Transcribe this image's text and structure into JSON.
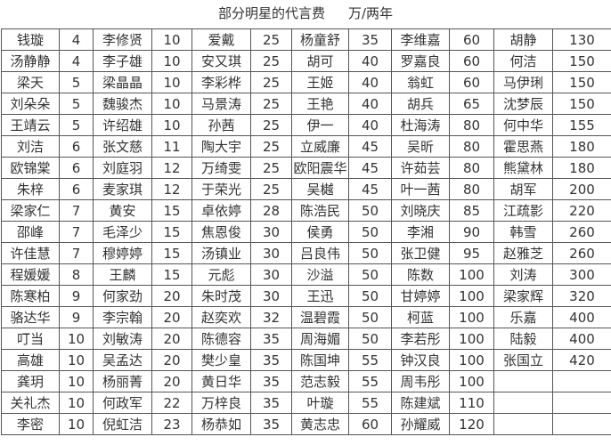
{
  "title": "部分明星的代言费",
  "unit": "万/两年",
  "columns": [
    [
      [
        "钱璇",
        "4"
      ],
      [
        "汤静静",
        "4"
      ],
      [
        "梁天",
        "5"
      ],
      [
        "刘朵朵",
        "5"
      ],
      [
        "王靖云",
        "5"
      ],
      [
        "刘洁",
        "6"
      ],
      [
        "欧锦棠",
        "6"
      ],
      [
        "朱梓",
        "6"
      ],
      [
        "梁家仁",
        "7"
      ],
      [
        "邵峰",
        "7"
      ],
      [
        "许佳慧",
        "7"
      ],
      [
        "程媛媛",
        "8"
      ],
      [
        "陈寒柏",
        "9"
      ],
      [
        "骆达华",
        "9"
      ],
      [
        "叮当",
        "10"
      ],
      [
        "高雄",
        "10"
      ],
      [
        "龚玥",
        "10"
      ],
      [
        "关礼杰",
        "10"
      ],
      [
        "李密",
        "10"
      ]
    ],
    [
      [
        "李修贤",
        "10"
      ],
      [
        "李子雄",
        "10"
      ],
      [
        "梁晶晶",
        "10"
      ],
      [
        "魏骏杰",
        "10"
      ],
      [
        "许绍雄",
        "10"
      ],
      [
        "张文慈",
        "11"
      ],
      [
        "刘庭羽",
        "12"
      ],
      [
        "麦家琪",
        "12"
      ],
      [
        "黄安",
        "15"
      ],
      [
        "毛泽少",
        "15"
      ],
      [
        "穆婷婷",
        "15"
      ],
      [
        "王麟",
        "15"
      ],
      [
        "何家劲",
        "20"
      ],
      [
        "李宗翰",
        "20"
      ],
      [
        "刘敏涛",
        "20"
      ],
      [
        "吴孟达",
        "20"
      ],
      [
        "杨丽菁",
        "20"
      ],
      [
        "何政军",
        "22"
      ],
      [
        "倪虹洁",
        "23"
      ]
    ],
    [
      [
        "爱戴",
        "25"
      ],
      [
        "安又琪",
        "25"
      ],
      [
        "李彩桦",
        "25"
      ],
      [
        "马景涛",
        "25"
      ],
      [
        "孙茜",
        "25"
      ],
      [
        "陶大宇",
        "25"
      ],
      [
        "万绮雯",
        "25"
      ],
      [
        "于荣光",
        "25"
      ],
      [
        "卓依婷",
        "28"
      ],
      [
        "焦恩俊",
        "30"
      ],
      [
        "汤镇业",
        "30"
      ],
      [
        "元彪",
        "30"
      ],
      [
        "朱时茂",
        "30"
      ],
      [
        "赵奕欢",
        "32"
      ],
      [
        "陈德容",
        "35"
      ],
      [
        "樊少皇",
        "35"
      ],
      [
        "黄日华",
        "35"
      ],
      [
        "万梓良",
        "35"
      ],
      [
        "杨恭如",
        "35"
      ]
    ],
    [
      [
        "杨童舒",
        "35"
      ],
      [
        "胡可",
        "40"
      ],
      [
        "王姬",
        "40"
      ],
      [
        "王艳",
        "40"
      ],
      [
        "伊一",
        "40"
      ],
      [
        "立威廉",
        "45"
      ],
      [
        "欧阳震华",
        "45"
      ],
      [
        "吴樾",
        "45"
      ],
      [
        "陈浩民",
        "50"
      ],
      [
        "侯勇",
        "50"
      ],
      [
        "吕良伟",
        "50"
      ],
      [
        "沙溢",
        "50"
      ],
      [
        "王迅",
        "50"
      ],
      [
        "温碧霞",
        "50"
      ],
      [
        "周海媚",
        "50"
      ],
      [
        "陈国坤",
        "55"
      ],
      [
        "范志毅",
        "55"
      ],
      [
        "叶璇",
        "55"
      ],
      [
        "黄志忠",
        "60"
      ]
    ],
    [
      [
        "李维嘉",
        "60"
      ],
      [
        "罗嘉良",
        "60"
      ],
      [
        "翁虹",
        "60"
      ],
      [
        "胡兵",
        "65"
      ],
      [
        "杜海涛",
        "80"
      ],
      [
        "吴昕",
        "80"
      ],
      [
        "许茹芸",
        "80"
      ],
      [
        "叶一茜",
        "80"
      ],
      [
        "刘晓庆",
        "85"
      ],
      [
        "李湘",
        "90"
      ],
      [
        "张卫健",
        "95"
      ],
      [
        "陈数",
        "100"
      ],
      [
        "甘婷婷",
        "100"
      ],
      [
        "柯蓝",
        "100"
      ],
      [
        "李若彤",
        "100"
      ],
      [
        "钟汉良",
        "100"
      ],
      [
        "周韦彤",
        "100"
      ],
      [
        "陈建斌",
        "110"
      ],
      [
        "孙耀威",
        "120"
      ]
    ],
    [
      [
        "胡静",
        "130"
      ],
      [
        "何洁",
        "150"
      ],
      [
        "马伊琍",
        "150"
      ],
      [
        "沈梦辰",
        "150"
      ],
      [
        "何中华",
        "155"
      ],
      [
        "霍思燕",
        "180"
      ],
      [
        "熊黛林",
        "180"
      ],
      [
        "胡军",
        "200"
      ],
      [
        "江疏影",
        "220"
      ],
      [
        "韩雪",
        "260"
      ],
      [
        "赵雅芝",
        "260"
      ],
      [
        "刘涛",
        "300"
      ],
      [
        "梁家辉",
        "320"
      ],
      [
        "乐嘉",
        "400"
      ],
      [
        "陆毅",
        "400"
      ],
      [
        "张国立",
        "420"
      ],
      [
        "",
        ""
      ],
      [
        "",
        ""
      ],
      [
        "",
        ""
      ]
    ]
  ]
}
